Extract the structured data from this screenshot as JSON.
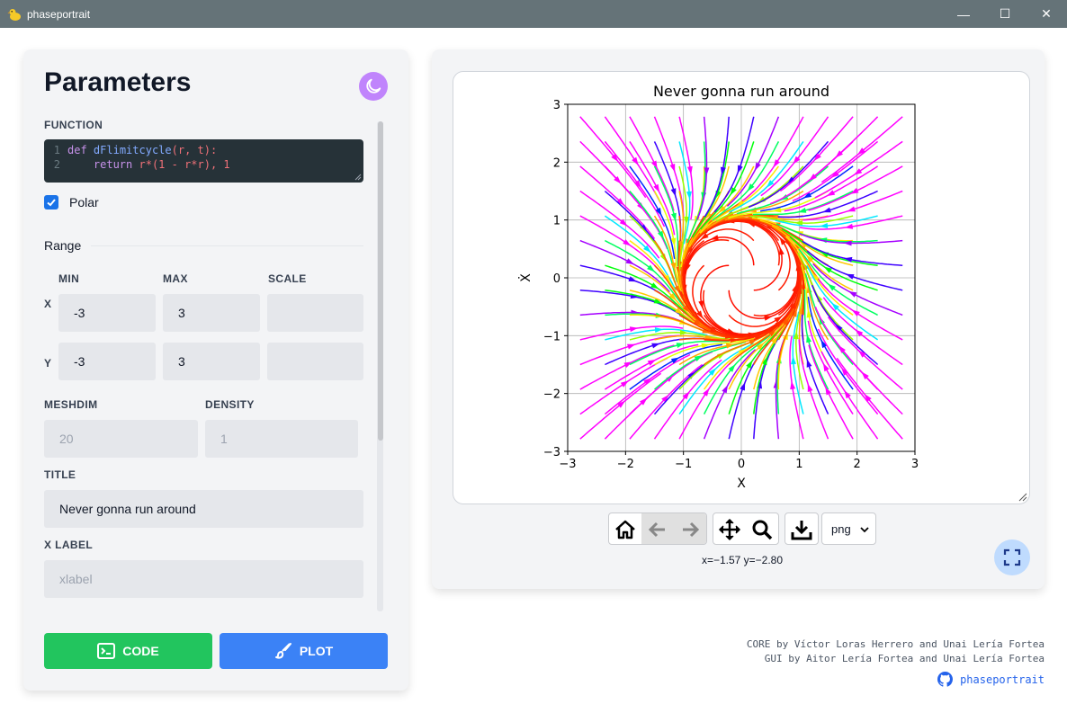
{
  "window": {
    "title": "phaseportrait",
    "minimize": "—",
    "maximize": "☐",
    "close": "✕"
  },
  "params": {
    "title": "Parameters",
    "function_label": "FUNCTION",
    "code": {
      "line1_no": "1",
      "line2_no": "2",
      "l1_kw": "def",
      "l1_fn": "dFlimitcycle",
      "l1_args": "(r, t):",
      "l2_indent": "    ",
      "l2_kw": "return",
      "l2_body": " r*(1 - r*r), 1"
    },
    "polar_label": "Polar",
    "polar_checked": true,
    "range_label": "Range",
    "range_cols": {
      "min": "MIN",
      "max": "MAX",
      "scale": "SCALE"
    },
    "range_rows": {
      "x": {
        "label": "X",
        "min": "-3",
        "max": "3",
        "scale": ""
      },
      "y": {
        "label": "Y",
        "min": "-3",
        "max": "3",
        "scale": ""
      }
    },
    "meshdim_label": "MESHDIM",
    "meshdim_placeholder": "20",
    "density_label": "DENSITY",
    "density_placeholder": "1",
    "title_label": "TITLE",
    "title_value": "Never gonna run around",
    "xlabel_label": "X LABEL",
    "xlabel_placeholder": "xlabel",
    "code_button": "CODE",
    "plot_button": "PLOT"
  },
  "plot": {
    "toolbar": {
      "format_value": "png"
    },
    "coords": "x=−1.57 y=−2.80"
  },
  "chart_data": {
    "type": "scatter",
    "title": "Never gonna run around",
    "xlabel": "X",
    "ylabel": "Ẋ",
    "xlim": [
      -3,
      3
    ],
    "ylim": [
      -3,
      3
    ],
    "x_ticks": [
      "−3",
      "−2",
      "−1",
      "0",
      "1",
      "2",
      "3"
    ],
    "y_ticks": [
      "3",
      "2",
      "1",
      "0",
      "−1",
      "−2",
      "−3"
    ],
    "grid": true,
    "field": "streamplot of dFlimitcycle(r, t) = r*(1 - r*r), 1 in polar coordinates",
    "colormap": [
      "#ff0000",
      "#ff8000",
      "#ffff00",
      "#00ff00",
      "#00ffff",
      "#0000ff",
      "#ff00ff"
    ]
  },
  "credits": {
    "line1": "CORE by Víctor Loras Herrero and Unai Lería Fortea",
    "line2": "GUI by Aitor Lería Fortea and Unai Lería Fortea",
    "github": "phaseportrait"
  }
}
